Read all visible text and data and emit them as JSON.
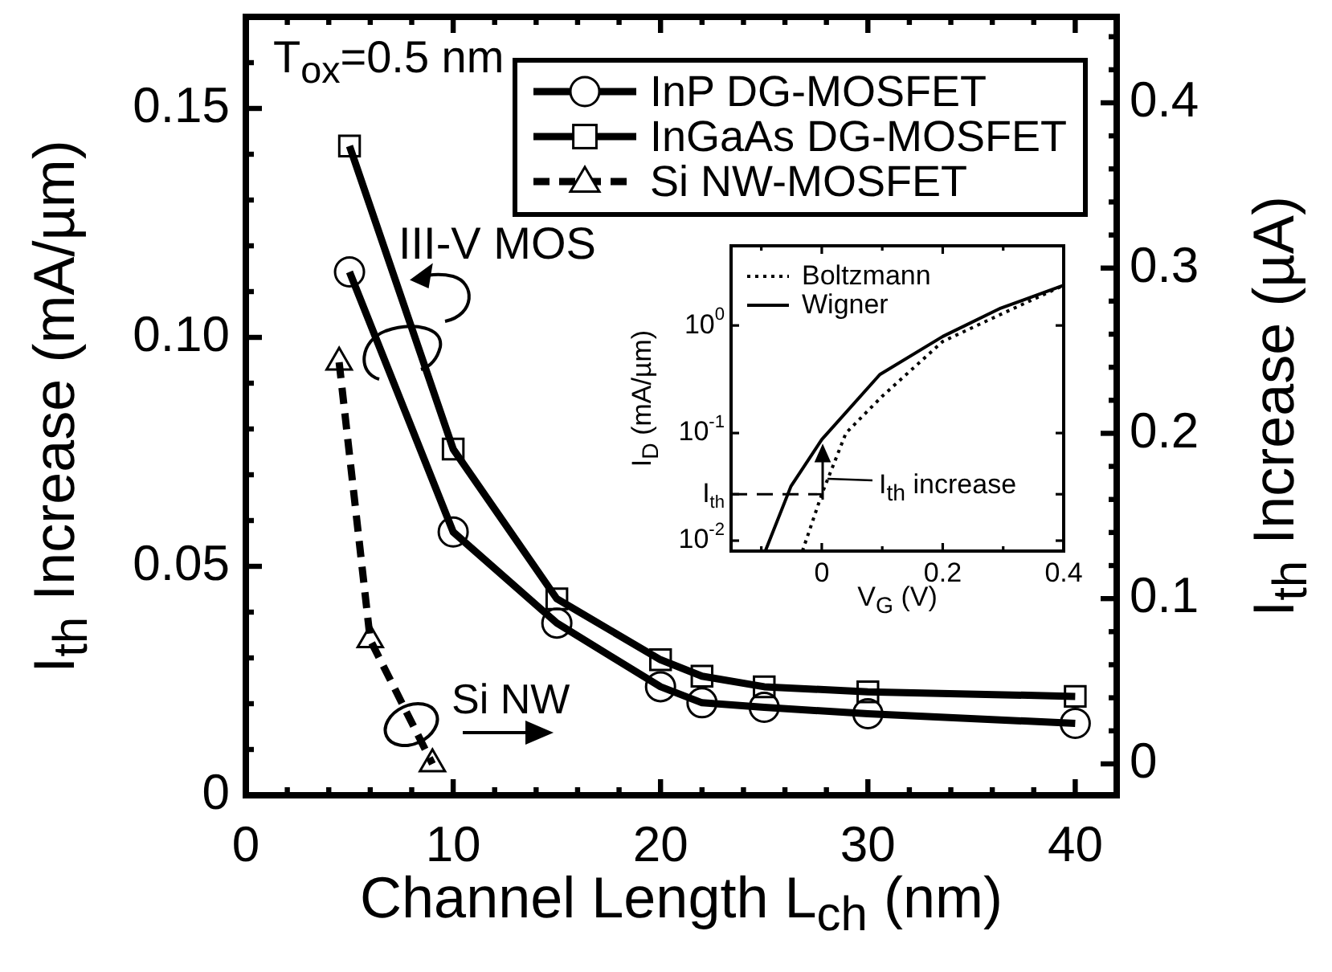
{
  "chart_data": [
    {
      "type": "line",
      "xlabel": "Channel Length L$_{ch}$ (nm)",
      "ylabel": "I$_{th}$ Increase (mA/µm)",
      "y2label": "I$_{th}$ Increase (µA)",
      "xlim": [
        0,
        42
      ],
      "xticks": [
        0,
        {
          "value": 2,
          "label": null
        },
        {
          "value": 4,
          "label": null
        },
        {
          "value": 6,
          "label": null
        },
        {
          "value": 8,
          "label": null
        },
        10,
        {
          "value": 12,
          "label": null
        },
        {
          "value": 14,
          "label": null
        },
        {
          "value": 16,
          "label": null
        },
        {
          "value": 18,
          "label": null
        },
        20,
        {
          "value": 22,
          "label": null
        },
        {
          "value": 24,
          "label": null
        },
        {
          "value": 26,
          "label": null
        },
        {
          "value": 28,
          "label": null
        },
        30,
        {
          "value": 32,
          "label": null
        },
        {
          "value": 34,
          "label": null
        },
        {
          "value": 36,
          "label": null
        },
        {
          "value": 38,
          "label": null
        },
        40
      ],
      "ylim": [
        0,
        0.17
      ],
      "yticks": [
        0,
        {
          "value": 0.01,
          "label": null
        },
        {
          "value": 0.02,
          "label": null
        },
        {
          "value": 0.03,
          "label": null
        },
        {
          "value": 0.04,
          "label": null
        },
        0.05,
        {
          "value": 0.06,
          "label": null
        },
        {
          "value": 0.07,
          "label": null
        },
        {
          "value": 0.08,
          "label": null
        },
        {
          "value": 0.09,
          "label": null
        },
        {
          "value": 0.1,
          "label": "0.10"
        },
        {
          "value": 0.11,
          "label": null
        },
        {
          "value": 0.12,
          "label": null
        },
        {
          "value": 0.13,
          "label": null
        },
        {
          "value": 0.14,
          "label": null
        },
        0.15,
        {
          "value": 0.16,
          "label": null
        }
      ],
      "y2lim": [
        -0.019,
        0.452
      ],
      "y2ticks": [
        0,
        {
          "value": 0.02,
          "label": null
        },
        {
          "value": 0.04,
          "label": null
        },
        {
          "value": 0.06,
          "label": null
        },
        {
          "value": 0.08,
          "label": null
        },
        0.1,
        {
          "value": 0.12,
          "label": null
        },
        {
          "value": 0.14,
          "label": null
        },
        {
          "value": 0.16,
          "label": null
        },
        {
          "value": 0.18,
          "label": null
        },
        0.2,
        {
          "value": 0.22,
          "label": null
        },
        {
          "value": 0.24,
          "label": null
        },
        {
          "value": 0.26,
          "label": null
        },
        {
          "value": 0.28,
          "label": null
        },
        0.3,
        {
          "value": 0.32,
          "label": null
        },
        {
          "value": 0.34,
          "label": null
        },
        {
          "value": 0.36,
          "label": null
        },
        {
          "value": 0.38,
          "label": null
        },
        0.4,
        {
          "value": 0.42,
          "label": null
        },
        {
          "value": 0.44,
          "label": null
        }
      ],
      "x": [
        5,
        10,
        15,
        20,
        22,
        25,
        30,
        40
      ],
      "series": [
        {
          "name": "InP DG-MOSFET",
          "color": "#000000",
          "marker": "circle",
          "line_style": "solid",
          "values": [
            0.1143,
            0.0575,
            0.0376,
            0.0237,
            0.0202,
            0.0192,
            0.0178,
            0.0157
          ]
        },
        {
          "name": "InGaAs DG-MOSFET",
          "color": "#000000",
          "marker": "square",
          "line_style": "solid",
          "values": [
            0.1418,
            0.0756,
            0.0429,
            0.0296,
            0.026,
            0.0237,
            0.0226,
            0.0216
          ]
        },
        {
          "name": "Si NW-MOSFET",
          "color": "#000000",
          "marker": "triangle",
          "line_style": "dashed",
          "axis": "y2",
          "x": [
            4.5,
            6,
            9
          ],
          "values": [
            0.243,
            0.075,
            0
          ]
        }
      ],
      "legend": "top right",
      "annotations": [
        "T$_{ox}$=0.5 nm",
        "III-V MOS",
        "Si NW"
      ]
    },
    {
      "type": "line",
      "xlabel": "V$_{G}$ (V)",
      "ylabel": "I$_{D}$ (mA/µm)",
      "log": "y",
      "xlim": [
        -0.15,
        0.4
      ],
      "xticks": [
        {
          "value": -0.1,
          "label": null
        },
        0,
        {
          "value": 0.1,
          "label": null
        },
        0.2,
        {
          "value": 0.3,
          "label": null
        },
        0.4
      ],
      "ylim": [
        0.008,
        5.5
      ],
      "yticks": [
        {
          "value": 1,
          "label": "10$^{0}$"
        },
        {
          "value": 0.1,
          "label": "10$^{-1}$"
        },
        {
          "value": 0.027,
          "label": "I$_{th}$"
        },
        {
          "value": 0.01,
          "label": "10$^{-2}$"
        }
      ],
      "series": [
        {
          "name": "Boltzmann",
          "color": "#000000",
          "line_style": "dotted",
          "x": [
            -0.032,
            0,
            0.04,
            0.1,
            0.2,
            0.3,
            0.4
          ],
          "values": [
            0.008,
            0.027,
            0.1,
            0.22,
            0.71,
            1.3,
            2.36
          ]
        },
        {
          "name": "Wigner",
          "color": "#000000",
          "line_style": "solid",
          "x": [
            -0.093,
            -0.051,
            0,
            0.096,
            0.2,
            0.296,
            0.4
          ],
          "values": [
            0.0081,
            0.032,
            0.087,
            0.35,
            0.79,
            1.45,
            2.36
          ]
        },
        {
          "color": "#000000",
          "line_style": "dashed",
          "x": [
            -0.15,
            0
          ],
          "values": [
            0.027,
            0.027
          ]
        }
      ],
      "legend": "top left",
      "annotations": [
        "I$_{th}$ increase"
      ]
    }
  ]
}
